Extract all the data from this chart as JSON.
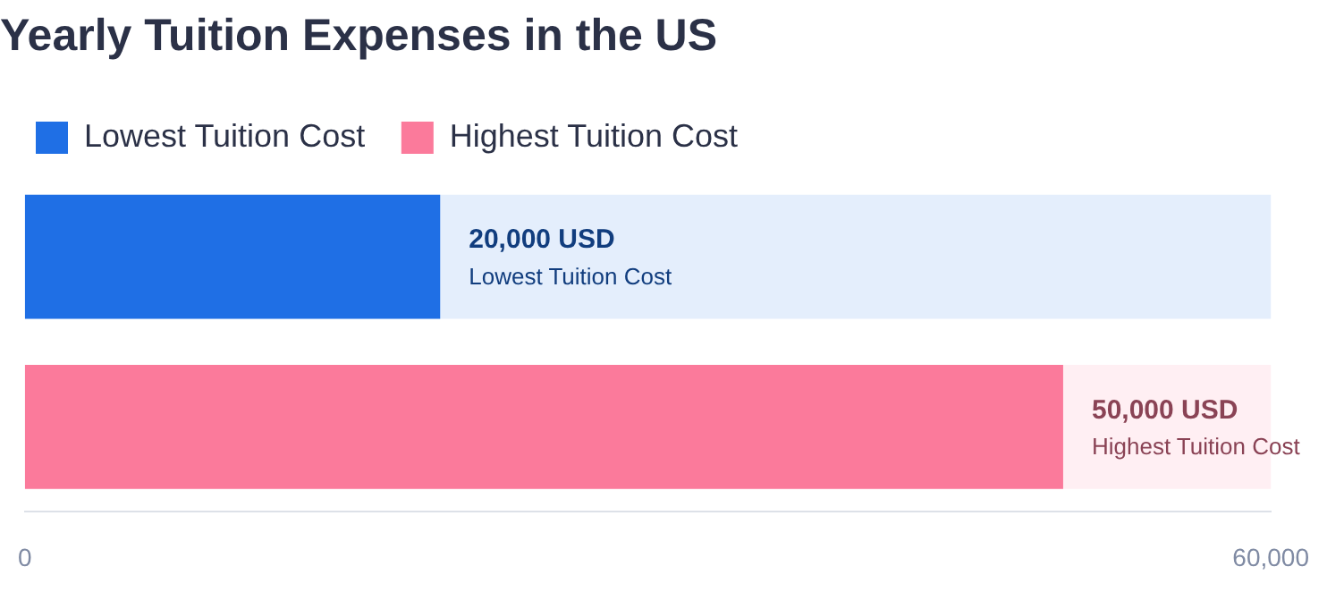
{
  "chart_data": {
    "type": "bar",
    "orientation": "horizontal",
    "title": "Yearly Tuition Expenses in the US",
    "categories": [
      null,
      null
    ],
    "series": [
      {
        "name": "Lowest Tuition Cost",
        "color": "#1f6fe5",
        "values": [
          20000,
          null
        ],
        "value_labels": [
          "20,000 USD",
          null
        ]
      },
      {
        "name": "Highest Tuition Cost",
        "color": "#fb7a9b",
        "values": [
          null,
          50000
        ],
        "value_labels": [
          null,
          "50,000 USD"
        ]
      }
    ],
    "xlim": [
      0,
      60000
    ],
    "xticks": [
      {
        "value": 0,
        "label": "0"
      },
      {
        "value": 60000,
        "label": "60,000"
      }
    ],
    "tick_labels": "x",
    "stacked": true,
    "grid": false,
    "legend": "top left"
  }
}
